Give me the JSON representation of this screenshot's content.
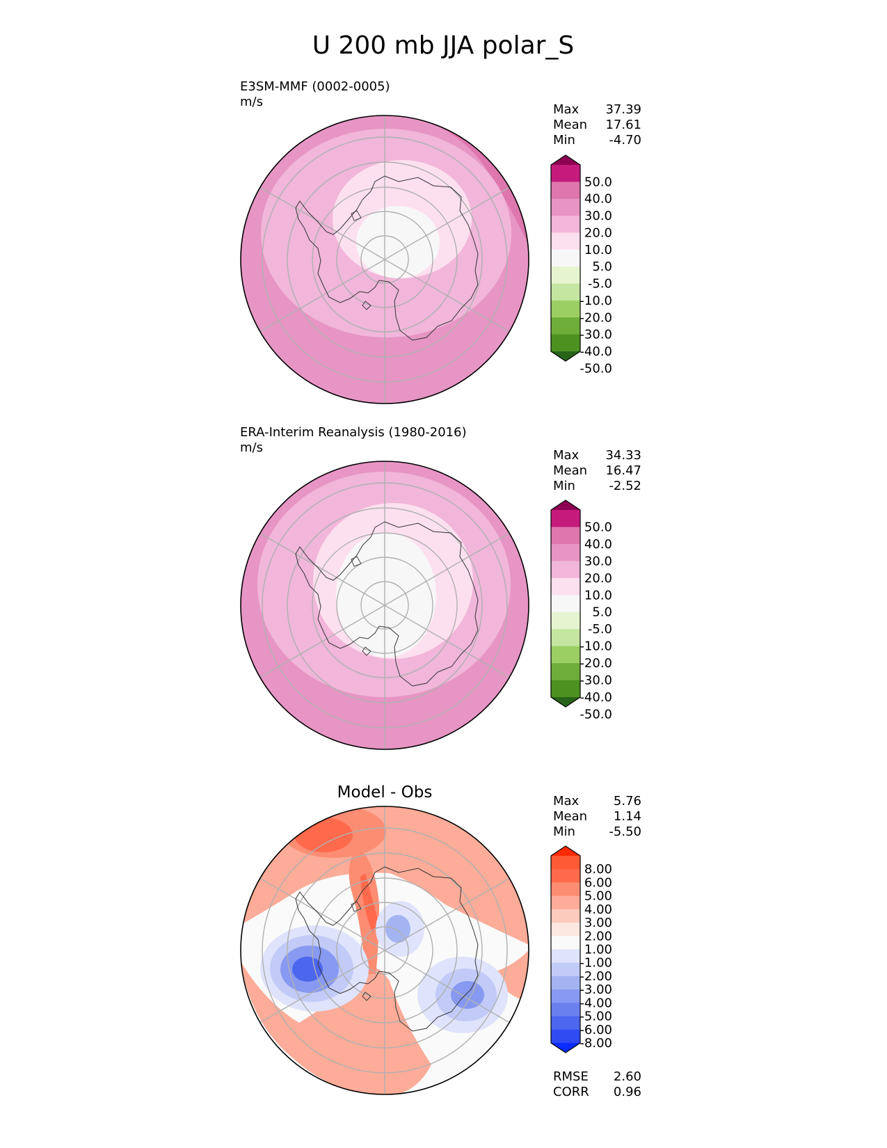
{
  "title": "U 200 mb JJA polar_S",
  "panels": [
    {
      "id": "test",
      "name": "E3SM-MMF (0002-0005)",
      "units": "m/s",
      "center_title": "",
      "stats": [
        {
          "label": "Max",
          "value": "37.39"
        },
        {
          "label": "Mean",
          "value": "17.61"
        },
        {
          "label": "Min",
          "value": "-4.70"
        }
      ],
      "extra_stats": []
    },
    {
      "id": "ref",
      "name": "ERA-Interim Reanalysis (1980-2016)",
      "units": "m/s",
      "center_title": "",
      "stats": [
        {
          "label": "Max",
          "value": "34.33"
        },
        {
          "label": "Mean",
          "value": "16.47"
        },
        {
          "label": "Min",
          "value": "-2.52"
        }
      ],
      "extra_stats": []
    },
    {
      "id": "diff",
      "name": "",
      "units": "",
      "center_title": "Model - Obs",
      "stats": [
        {
          "label": "Max",
          "value": "5.76"
        },
        {
          "label": "Mean",
          "value": "1.14"
        },
        {
          "label": "Min",
          "value": "-5.50"
        }
      ],
      "extra_stats": [
        {
          "label": "RMSE",
          "value": "2.60"
        },
        {
          "label": "CORR",
          "value": "0.96"
        }
      ]
    }
  ],
  "chart_data": [
    {
      "type": "heatmap",
      "projection": "south-polar-stereographic",
      "title": "E3SM-MMF (0002-0005)",
      "units": "m/s",
      "colorbar": {
        "colors": [
          "#8e0152",
          "#c51b7d",
          "#de77ae",
          "#e795c5",
          "#f1b6da",
          "#fde0ef",
          "#f7f7f7",
          "#e6f5d0",
          "#c5e6a0",
          "#9bcf64",
          "#6fad3b",
          "#4d9221",
          "#276419"
        ],
        "ticks": [
          "50.0",
          "40.0",
          "30.0",
          "20.0",
          "10.0",
          "5.0",
          "-5.0",
          "-10.0",
          "-20.0",
          "-30.0",
          "-40.0",
          "-50.0"
        ],
        "extend": "both"
      },
      "max": 37.39,
      "mean": 17.61,
      "min": -4.7
    },
    {
      "type": "heatmap",
      "projection": "south-polar-stereographic",
      "title": "ERA-Interim Reanalysis (1980-2016)",
      "units": "m/s",
      "colorbar": {
        "colors": [
          "#8e0152",
          "#c51b7d",
          "#de77ae",
          "#e795c5",
          "#f1b6da",
          "#fde0ef",
          "#f7f7f7",
          "#e6f5d0",
          "#c5e6a0",
          "#9bcf64",
          "#6fad3b",
          "#4d9221",
          "#276419"
        ],
        "ticks": [
          "50.0",
          "40.0",
          "30.0",
          "20.0",
          "10.0",
          "5.0",
          "-5.0",
          "-10.0",
          "-20.0",
          "-30.0",
          "-40.0",
          "-50.0"
        ],
        "extend": "both"
      },
      "max": 34.33,
      "mean": 16.47,
      "min": -2.52
    },
    {
      "type": "heatmap",
      "projection": "south-polar-stereographic",
      "title": "Model - Obs",
      "units": "",
      "colorbar": {
        "colors": [
          "#ff2a00",
          "#ff5a36",
          "#ff6a4d",
          "#fc8d73",
          "#fcac98",
          "#fdcbbe",
          "#fde7e1",
          "#fafafa",
          "#dfe3fb",
          "#c2cbf7",
          "#a4b4f3",
          "#8799f0",
          "#6a80ee",
          "#4d66ee",
          "#304bf2",
          "#0a2cff"
        ],
        "ticks": [
          "8.00",
          "6.00",
          "5.00",
          "4.00",
          "3.00",
          "2.00",
          "1.00",
          "-1.00",
          "-2.00",
          "-3.00",
          "-4.00",
          "-5.00",
          "-6.00",
          "-8.00"
        ],
        "extend": "both"
      },
      "max": 5.76,
      "mean": 1.14,
      "min": -5.5,
      "rmse": 2.6,
      "corr": 0.96
    }
  ]
}
